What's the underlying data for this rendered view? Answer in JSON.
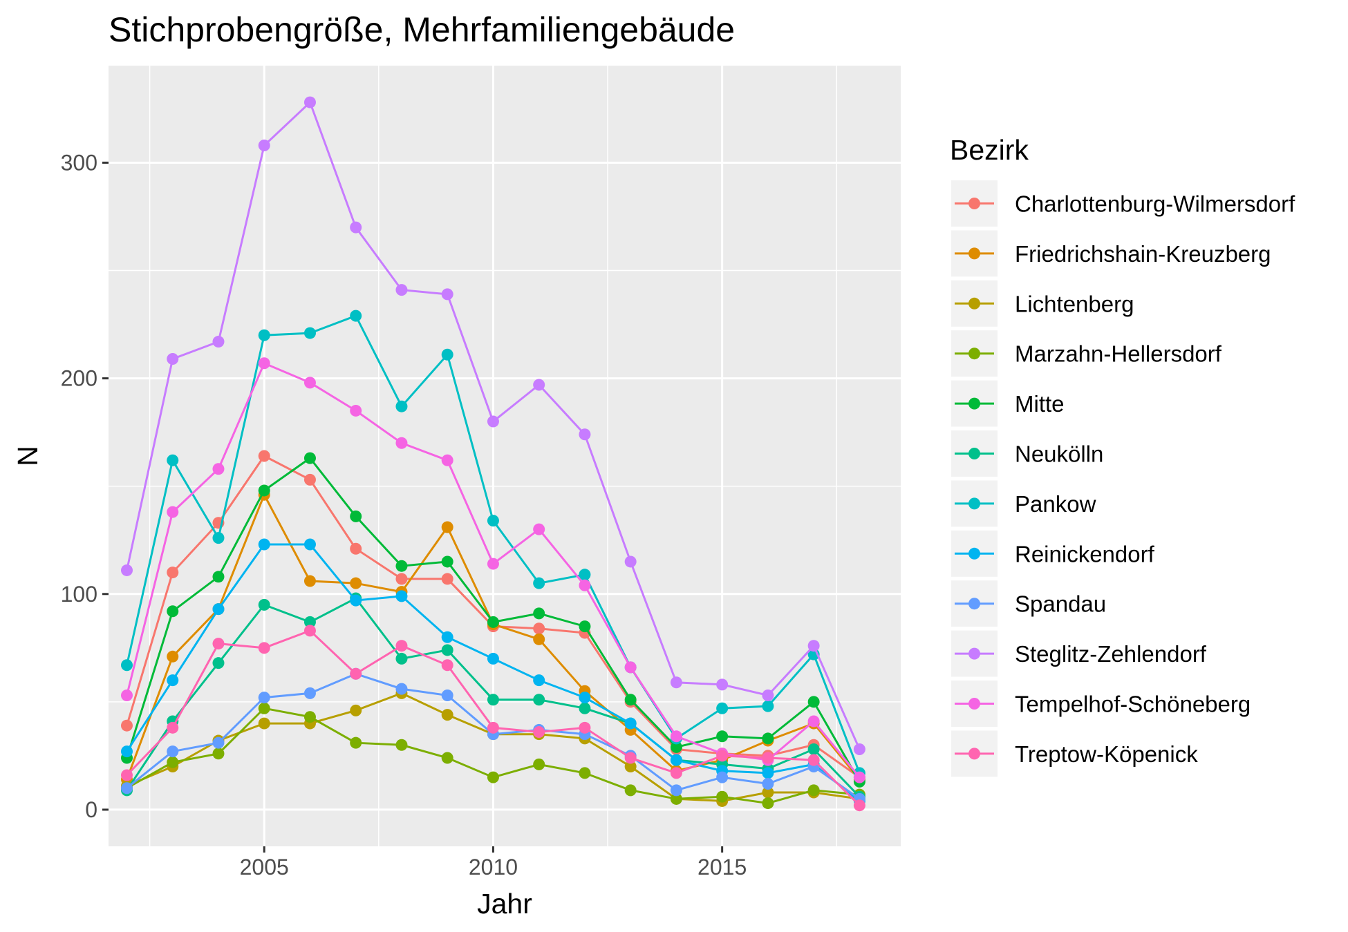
{
  "chart_data": {
    "type": "line",
    "title": "Stichprobengröße, Mehrfamiliengebäude",
    "xlabel": "Jahr",
    "ylabel": "N",
    "xlim": [
      2001.6,
      2018.9
    ],
    "ylim": [
      -17,
      345
    ],
    "x_ticks": [
      2005,
      2010,
      2015
    ],
    "y_ticks": [
      0,
      100,
      200,
      300
    ],
    "x_tick_labels": [
      "2005",
      "2010",
      "2015"
    ],
    "y_tick_labels": [
      "0",
      "100",
      "200",
      "300"
    ],
    "grid": true,
    "legend_position": "right",
    "legend_title": "Bezirk",
    "x": [
      2002,
      2003,
      2004,
      2005,
      2006,
      2007,
      2008,
      2009,
      2010,
      2011,
      2012,
      2013,
      2014,
      2015,
      2016,
      2017,
      2018
    ],
    "series": [
      {
        "name": "Charlottenburg-Wilmersdorf",
        "color": "#F8766D",
        "values": [
          39,
          110,
          133,
          164,
          153,
          121,
          107,
          107,
          85,
          84,
          82,
          50,
          28,
          26,
          25,
          30,
          15
        ]
      },
      {
        "name": "Friedrichshain-Kreuzberg",
        "color": "#DE8C00",
        "values": [
          14,
          71,
          93,
          146,
          106,
          105,
          101,
          131,
          86,
          79,
          55,
          37,
          18,
          23,
          32,
          40,
          14
        ]
      },
      {
        "name": "Lichtenberg",
        "color": "#B79F00",
        "values": [
          11,
          20,
          32,
          40,
          40,
          46,
          54,
          44,
          35,
          35,
          33,
          20,
          5,
          4,
          8,
          8,
          5
        ]
      },
      {
        "name": "Marzahn-Hellersdorf",
        "color": "#7CAE00",
        "values": [
          10,
          22,
          26,
          47,
          43,
          31,
          30,
          24,
          15,
          21,
          17,
          9,
          5,
          6,
          3,
          9,
          7
        ]
      },
      {
        "name": "Mitte",
        "color": "#00BA38",
        "values": [
          24,
          92,
          108,
          148,
          163,
          136,
          113,
          115,
          87,
          91,
          85,
          51,
          29,
          34,
          33,
          50,
          13
        ]
      },
      {
        "name": "Neukölln",
        "color": "#00C08B",
        "values": [
          9,
          41,
          68,
          95,
          87,
          98,
          70,
          74,
          51,
          51,
          47,
          40,
          23,
          21,
          19,
          28,
          6
        ]
      },
      {
        "name": "Pankow",
        "color": "#00BFC4",
        "values": [
          67,
          162,
          126,
          220,
          221,
          229,
          187,
          211,
          134,
          105,
          109,
          66,
          33,
          47,
          48,
          72,
          17
        ]
      },
      {
        "name": "Reinickendorf",
        "color": "#00B4F0",
        "values": [
          27,
          60,
          93,
          123,
          123,
          97,
          99,
          80,
          70,
          60,
          52,
          40,
          23,
          18,
          17,
          21,
          4
        ]
      },
      {
        "name": "Spandau",
        "color": "#619CFF",
        "values": [
          10,
          27,
          31,
          52,
          54,
          63,
          56,
          53,
          35,
          37,
          35,
          25,
          9,
          15,
          12,
          20,
          5
        ]
      },
      {
        "name": "Steglitz-Zehlendorf",
        "color": "#C77CFF",
        "values": [
          111,
          209,
          217,
          308,
          328,
          270,
          241,
          239,
          180,
          197,
          174,
          115,
          59,
          58,
          53,
          76,
          28
        ]
      },
      {
        "name": "Tempelhof-Schöneberg",
        "color": "#F564E3",
        "values": [
          53,
          138,
          158,
          207,
          198,
          185,
          170,
          162,
          114,
          130,
          104,
          66,
          34,
          26,
          23,
          41,
          15
        ]
      },
      {
        "name": "Treptow-Köpenick",
        "color": "#FF64B0",
        "values": [
          16,
          38,
          77,
          75,
          83,
          63,
          76,
          67,
          38,
          36,
          38,
          24,
          17,
          25,
          24,
          23,
          2
        ]
      }
    ]
  }
}
